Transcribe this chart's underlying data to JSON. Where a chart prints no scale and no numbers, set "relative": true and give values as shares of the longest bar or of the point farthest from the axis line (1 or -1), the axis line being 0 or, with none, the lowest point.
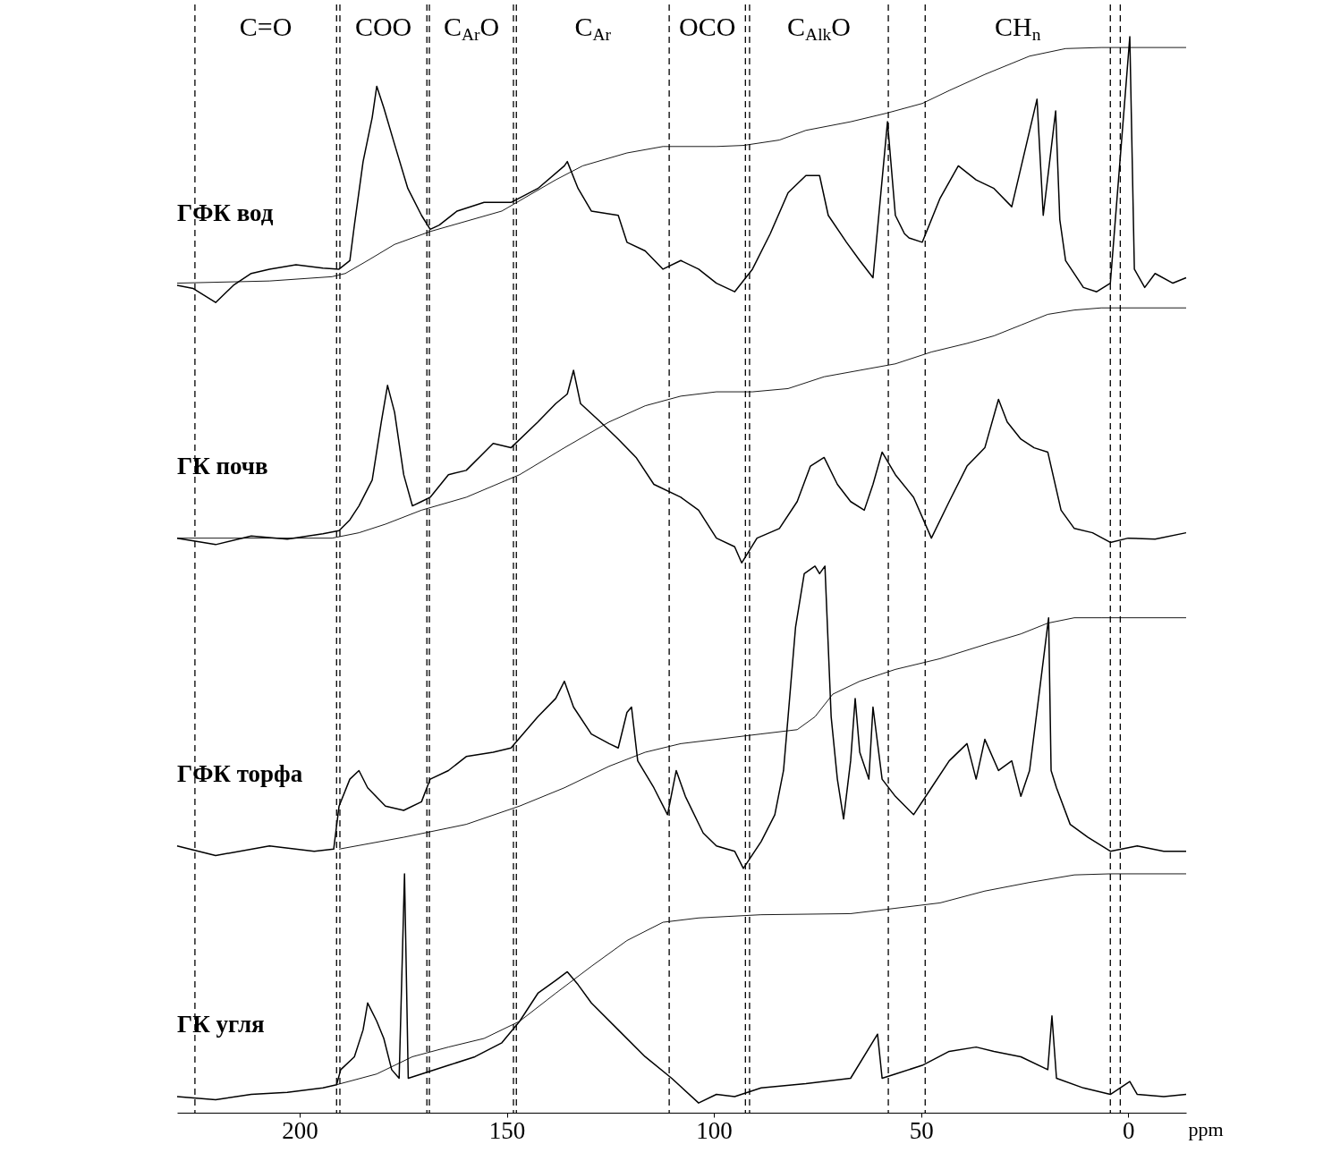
{
  "chart_data": {
    "type": "line",
    "relative": true,
    "xlim": [
      229.6,
      -14
    ],
    "xticks": [
      200,
      150,
      100,
      50,
      0
    ],
    "xlabel": "ppm",
    "annotations": [
      "C=O",
      "COO",
      "C$_{Ar}$O",
      "C$_{Ar}$",
      "OCO",
      "C$_{Alk}$O",
      "CH$_{n}$"
    ],
    "ref_lines": [
      {
        "axis": "x",
        "value": 225.3,
        "line_style": "dashed"
      },
      {
        "axis": "x",
        "value": 191.1,
        "line_style": "dashed"
      },
      {
        "axis": "x",
        "value": 190.3,
        "line_style": "dashed"
      },
      {
        "axis": "x",
        "value": 169.3,
        "line_style": "dashed"
      },
      {
        "axis": "x",
        "value": 168.7,
        "line_style": "dashed"
      },
      {
        "axis": "x",
        "value": 148.4,
        "line_style": "dashed"
      },
      {
        "axis": "x",
        "value": 147.7,
        "line_style": "dashed"
      },
      {
        "axis": "x",
        "value": 110.8,
        "line_style": "dashed"
      },
      {
        "axis": "x",
        "value": 92.4,
        "line_style": "dashed"
      },
      {
        "axis": "x",
        "value": 91.4,
        "line_style": "dashed"
      },
      {
        "axis": "x",
        "value": 57.9,
        "line_style": "dashed"
      },
      {
        "axis": "x",
        "value": 49,
        "line_style": "dashed"
      },
      {
        "axis": "x",
        "value": 4.3,
        "line_style": "dashed"
      },
      {
        "axis": "x",
        "value": 1.9,
        "line_style": "dashed"
      }
    ],
    "series": [
      {
        "name": "ГФК вод",
        "color": "#000000",
        "x": [
          229.6,
          225.7,
          220.3,
          216,
          211.7,
          207.3,
          200.9,
          194.4,
          190.5,
          187.9,
          186.8,
          184.7,
          182.5,
          181.4,
          179.7,
          177.1,
          173.9,
          170.6,
          168.5,
          166.3,
          162,
          155.5,
          149,
          142.5,
          136.1,
          135.4,
          132.8,
          129.6,
          123.1,
          121,
          116.6,
          112.3,
          108,
          103.7,
          99.4,
          95,
          90.7,
          86.4,
          82.1,
          77.8,
          74.5,
          72.4,
          68,
          64.8,
          61.6,
          58.1,
          56.2,
          54,
          52.9,
          49.7,
          45.4,
          41,
          36.7,
          32.4,
          28.1,
          22,
          20.5,
          17.5,
          16.5,
          15.1,
          10.8,
          7.6,
          4.3,
          -0.4,
          -1.5,
          -4,
          -6.5,
          -10.8,
          -14
        ],
        "values": [
          0.769,
          0.766,
          0.753,
          0.769,
          0.78,
          0.784,
          0.788,
          0.785,
          0.784,
          0.792,
          0.825,
          0.884,
          0.925,
          0.954,
          0.934,
          0.9,
          0.859,
          0.834,
          0.821,
          0.825,
          0.838,
          0.846,
          0.846,
          0.859,
          0.88,
          0.884,
          0.859,
          0.838,
          0.834,
          0.809,
          0.801,
          0.784,
          0.792,
          0.784,
          0.771,
          0.763,
          0.784,
          0.817,
          0.855,
          0.871,
          0.871,
          0.834,
          0.809,
          0.792,
          0.776,
          0.921,
          0.834,
          0.817,
          0.813,
          0.809,
          0.85,
          0.88,
          0.867,
          0.859,
          0.842,
          0.942,
          0.834,
          0.931,
          0.83,
          0.792,
          0.767,
          0.763,
          0.771,
          1,
          0.784,
          0.767,
          0.78,
          0.771,
          0.776
        ]
      },
      {
        "color": "#000000",
        "x": [
          229.6,
          207.3,
          192.2,
          189,
          183.6,
          177.1,
          168.5,
          151.2,
          138.2,
          131.7,
          121,
          112.3,
          99.4,
          92.9,
          84.2,
          77.8,
          67,
          58.3,
          49.7,
          43.2,
          34.6,
          23.8,
          15.1,
          6.5,
          -14
        ],
        "values": [
          0.771,
          0.773,
          0.777,
          0.78,
          0.792,
          0.807,
          0.819,
          0.838,
          0.867,
          0.88,
          0.892,
          0.898,
          0.898,
          0.899,
          0.904,
          0.913,
          0.921,
          0.929,
          0.938,
          0.95,
          0.965,
          0.982,
          0.989,
          0.99,
          0.99
        ]
      },
      {
        "name": "ГК почв",
        "color": "#000000",
        "x": [
          229.6,
          220.3,
          211.7,
          203,
          194.4,
          190.5,
          187.9,
          185.7,
          182.5,
          180.3,
          178.8,
          177.1,
          174.9,
          172.8,
          170.6,
          168.5,
          164.1,
          159.8,
          153.3,
          149,
          142.5,
          138.2,
          135.4,
          133.9,
          132.2,
          127.4,
          123.1,
          118.8,
          114.5,
          108,
          103.7,
          99.4,
          95,
          93.3,
          89.6,
          84.2,
          79.9,
          76.7,
          73.4,
          70.2,
          67,
          63.7,
          61.6,
          59.4,
          56.2,
          51.8,
          47.5,
          43.2,
          38.9,
          34.6,
          31.3,
          29.2,
          25.9,
          22.7,
          19.4,
          16.2,
          13,
          8.6,
          4.3,
          0,
          -6.5,
          -14
        ],
        "values": [
          0.534,
          0.528,
          0.536,
          0.533,
          0.538,
          0.541,
          0.551,
          0.564,
          0.588,
          0.642,
          0.676,
          0.651,
          0.593,
          0.564,
          0.568,
          0.572,
          0.593,
          0.597,
          0.622,
          0.618,
          0.642,
          0.659,
          0.668,
          0.69,
          0.659,
          0.642,
          0.626,
          0.609,
          0.584,
          0.572,
          0.56,
          0.534,
          0.526,
          0.511,
          0.534,
          0.543,
          0.568,
          0.601,
          0.609,
          0.584,
          0.568,
          0.56,
          0.584,
          0.614,
          0.593,
          0.572,
          0.534,
          0.568,
          0.601,
          0.618,
          0.663,
          0.642,
          0.626,
          0.618,
          0.614,
          0.56,
          0.543,
          0.539,
          0.53,
          0.534,
          0.533,
          0.539
        ]
      },
      {
        "color": "#000000",
        "x": [
          229.6,
          192.2,
          185.7,
          179.3,
          170.6,
          159.8,
          146.9,
          136.1,
          125.3,
          116.6,
          108,
          99.4,
          90.7,
          82.1,
          73.4,
          64.8,
          56.2,
          47.5,
          38.9,
          32.4,
          25.9,
          19.4,
          13,
          6.5,
          -14
        ],
        "values": [
          0.534,
          0.534,
          0.539,
          0.547,
          0.56,
          0.572,
          0.593,
          0.618,
          0.642,
          0.657,
          0.666,
          0.67,
          0.67,
          0.673,
          0.684,
          0.69,
          0.696,
          0.707,
          0.715,
          0.722,
          0.732,
          0.742,
          0.746,
          0.748,
          0.748
        ]
      },
      {
        "name": "ГФК торфа",
        "color": "#000000",
        "x": [
          229.6,
          220.3,
          207.3,
          196.5,
          191.8,
          190.5,
          187.9,
          185.7,
          183.6,
          179.3,
          174.9,
          170.6,
          168.5,
          164.1,
          159.8,
          153.3,
          149,
          142.5,
          138.2,
          136.1,
          133.9,
          129.6,
          125.3,
          123.1,
          121,
          119.9,
          118.4,
          114.5,
          111.2,
          109.1,
          106.9,
          102.6,
          99.4,
          95,
          92.9,
          88.6,
          85.3,
          83.2,
          82.1,
          80.3,
          78.2,
          75.6,
          74.5,
          73.2,
          71.7,
          70.2,
          68.7,
          67,
          65.9,
          64.8,
          62.6,
          61.6,
          59.4,
          56.2,
          51.8,
          47.5,
          43.2,
          38.9,
          36.7,
          34.6,
          31.3,
          28.1,
          25.9,
          23.8,
          19.2,
          18.6,
          17.3,
          14,
          9.7,
          4.3,
          -2.2,
          -8.6,
          -14
        ],
        "values": [
          0.248,
          0.239,
          0.248,
          0.243,
          0.245,
          0.285,
          0.31,
          0.318,
          0.302,
          0.285,
          0.281,
          0.289,
          0.31,
          0.318,
          0.331,
          0.335,
          0.339,
          0.368,
          0.385,
          0.401,
          0.377,
          0.352,
          0.343,
          0.339,
          0.372,
          0.377,
          0.327,
          0.302,
          0.277,
          0.318,
          0.294,
          0.26,
          0.248,
          0.243,
          0.227,
          0.252,
          0.277,
          0.318,
          0.368,
          0.451,
          0.501,
          0.508,
          0.501,
          0.508,
          0.368,
          0.31,
          0.273,
          0.327,
          0.385,
          0.335,
          0.31,
          0.377,
          0.31,
          0.294,
          0.277,
          0.302,
          0.327,
          0.343,
          0.31,
          0.347,
          0.318,
          0.327,
          0.294,
          0.318,
          0.46,
          0.318,
          0.302,
          0.268,
          0.256,
          0.243,
          0.248,
          0.243,
          0.243
        ]
      },
      {
        "color": "#000000",
        "x": [
          190.5,
          174.9,
          159.8,
          146.9,
          136.1,
          125.3,
          116.6,
          108,
          99.4,
          88.6,
          79.9,
          75.6,
          71.3,
          64.8,
          56.2,
          45.4,
          34.6,
          25.9,
          19.4,
          13,
          6.5,
          -14
        ],
        "values": [
          0.245,
          0.256,
          0.268,
          0.285,
          0.302,
          0.322,
          0.335,
          0.343,
          0.347,
          0.352,
          0.356,
          0.368,
          0.389,
          0.401,
          0.412,
          0.422,
          0.435,
          0.445,
          0.455,
          0.46,
          0.46,
          0.46
        ]
      },
      {
        "name": "ГК угля",
        "color": "#000000",
        "x": [
          229.6,
          220.3,
          211.7,
          203,
          194.4,
          191.1,
          190.1,
          186.8,
          184.7,
          183.6,
          181.4,
          179.7,
          177.8,
          176,
          174.7,
          173.8,
          170.6,
          164.1,
          157.7,
          151.2,
          146.9,
          142.5,
          138.2,
          135.4,
          132.8,
          129.6,
          123.1,
          116.6,
          110.2,
          103.7,
          99.4,
          95,
          88.6,
          77.8,
          67,
          60.5,
          59.4,
          56.2,
          49.7,
          43.2,
          36.7,
          32.4,
          25.9,
          19.4,
          18.4,
          17.3,
          10.8,
          4.3,
          -0.4,
          -2.2,
          -8.6,
          -14
        ],
        "values": [
          0.015,
          0.012,
          0.017,
          0.019,
          0.023,
          0.026,
          0.04,
          0.052,
          0.077,
          0.102,
          0.085,
          0.069,
          0.04,
          0.032,
          0.222,
          0.032,
          0.036,
          0.044,
          0.052,
          0.065,
          0.085,
          0.111,
          0.123,
          0.131,
          0.119,
          0.102,
          0.077,
          0.052,
          0.032,
          0.009,
          0.017,
          0.015,
          0.023,
          0.027,
          0.032,
          0.073,
          0.032,
          0.036,
          0.044,
          0.057,
          0.061,
          0.057,
          0.052,
          0.04,
          0.09,
          0.032,
          0.023,
          0.017,
          0.029,
          0.017,
          0.015,
          0.017
        ]
      },
      {
        "color": "#000000",
        "x": [
          191.1,
          181.4,
          172.8,
          164.1,
          155.5,
          146.9,
          138.2,
          129.6,
          121,
          112.3,
          103.7,
          88.6,
          67,
          56.2,
          45.4,
          34.6,
          23.8,
          13,
          4.3,
          -14
        ],
        "values": [
          0.026,
          0.036,
          0.052,
          0.061,
          0.069,
          0.085,
          0.111,
          0.136,
          0.16,
          0.177,
          0.181,
          0.184,
          0.185,
          0.19,
          0.195,
          0.206,
          0.214,
          0.221,
          0.222,
          0.222
        ]
      }
    ]
  }
}
